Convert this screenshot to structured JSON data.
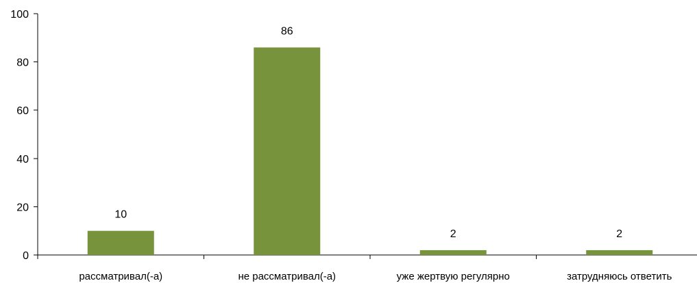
{
  "chart_data": {
    "type": "bar",
    "title": "",
    "xlabel": "",
    "ylabel": "",
    "categories": [
      "рассматривал(-а)",
      "не рассматривал(-а)",
      "уже жертвую регулярно",
      "затрудняюсь ответить"
    ],
    "values": [
      10,
      86,
      2,
      2
    ],
    "data_labels": [
      "10",
      "86",
      "2",
      "2"
    ],
    "ylim": [
      0,
      100
    ],
    "yticks": [
      0,
      20,
      40,
      60,
      80,
      100
    ],
    "grid": false,
    "legend": "none",
    "bar_color": "#77933c"
  }
}
